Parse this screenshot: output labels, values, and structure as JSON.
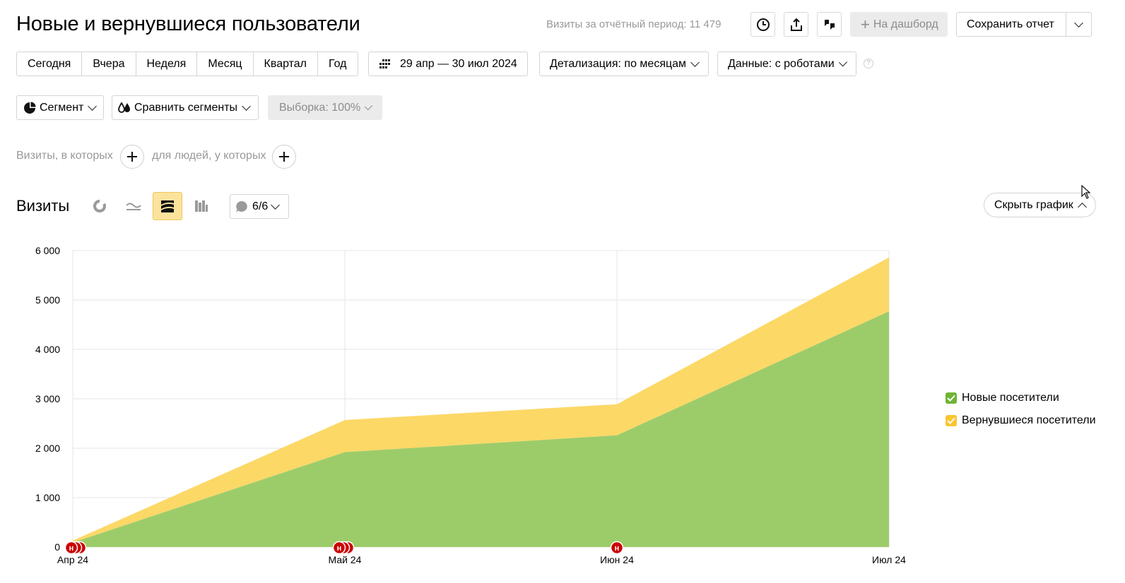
{
  "header": {
    "title": "Новые и вернувшиеся пользователи",
    "visits_total": "Визиты за отчётный период: 11 479",
    "to_dashboard": "На дашборд",
    "save_report": "Сохранить отчет"
  },
  "periods": [
    "Сегодня",
    "Вчера",
    "Неделя",
    "Месяц",
    "Квартал",
    "Год"
  ],
  "date_range": "29 апр — 30 июл 2024",
  "detail": "Детализация: по месяцам",
  "data_mode": "Данные: с роботами",
  "help": "?",
  "segment": {
    "segment_label": "Сегмент",
    "compare_label": "Сравнить сегменты",
    "sample_label": "Выборка: 100%"
  },
  "filters": {
    "visits_where": "Визиты, в которых",
    "people_where": "для людей, у которых"
  },
  "chart_section": {
    "title": "Визиты",
    "annotations": "6/6",
    "hide_chart": "Скрыть график"
  },
  "colors": {
    "new": "#9acb67",
    "returning": "#fcd65f",
    "marker": "#cc0000"
  },
  "chart_data": {
    "type": "area",
    "stacked": true,
    "categories": [
      "Апр 24",
      "Май 24",
      "Июн 24",
      "Июл 24"
    ],
    "y_ticks": [
      "0",
      "1 000",
      "2 000",
      "3 000",
      "4 000",
      "5 000",
      "6 000"
    ],
    "ylim": [
      0,
      6000
    ],
    "series": [
      {
        "name": "Новые посетители",
        "values": [
          90,
          1920,
          2260,
          4770
        ]
      },
      {
        "name": "Вернувшиеся посетители",
        "values": [
          40,
          650,
          630,
          1090
        ]
      }
    ],
    "markers": [
      {
        "category": "Апр 24",
        "label": "н"
      },
      {
        "category": "Май 24",
        "label": "н"
      },
      {
        "category": "Июн 24",
        "label": "н"
      }
    ],
    "legend_position": "right",
    "grid": true
  }
}
